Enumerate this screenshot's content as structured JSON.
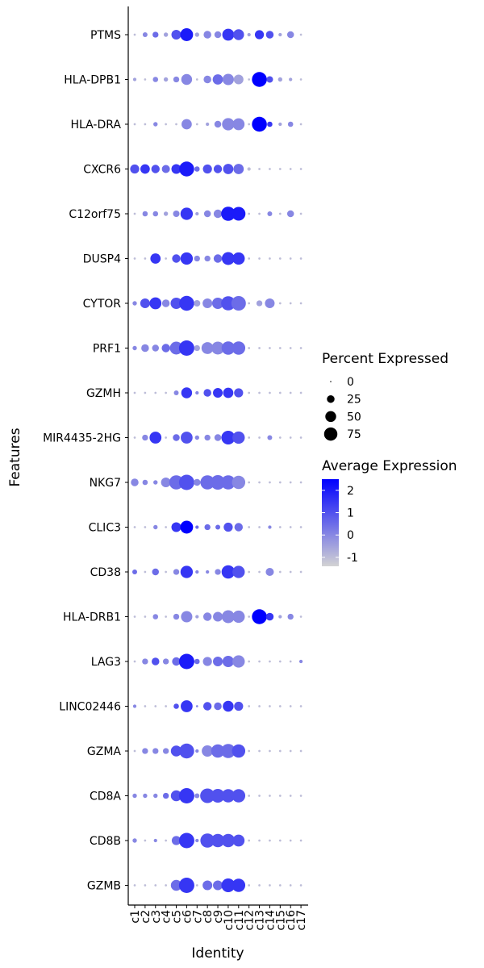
{
  "chart_data": {
    "type": "dotplot",
    "xlabel": "Identity",
    "ylabel": "Features",
    "categories": [
      "c1",
      "c2",
      "c3",
      "c4",
      "c5",
      "c6",
      "c7",
      "c8",
      "c9",
      "c10",
      "c11",
      "c12",
      "c13",
      "c14",
      "c15",
      "c16",
      "c17"
    ],
    "features": [
      "PTMS",
      "HLA-DPB1",
      "HLA-DRA",
      "CXCR6",
      "C12orf75",
      "DUSP4",
      "CYTOR",
      "PRF1",
      "GZMH",
      "MIR4435-2HG",
      "NKG7",
      "CLIC3",
      "CD38",
      "HLA-DRB1",
      "LAG3",
      "LINC02446",
      "GZMA",
      "CD8A",
      "CD8B",
      "GZMB"
    ],
    "percent_expressed": [
      [
        2,
        10,
        15,
        8,
        40,
        70,
        8,
        25,
        20,
        60,
        50,
        5,
        35,
        25,
        5,
        20,
        2
      ],
      [
        5,
        2,
        12,
        8,
        15,
        50,
        2,
        25,
        45,
        55,
        40,
        2,
        95,
        18,
        8,
        5,
        2
      ],
      [
        2,
        2,
        8,
        2,
        2,
        45,
        2,
        5,
        20,
        65,
        60,
        2,
        95,
        12,
        5,
        12,
        2
      ],
      [
        35,
        38,
        30,
        28,
        40,
        95,
        12,
        35,
        30,
        45,
        45,
        5,
        2,
        2,
        2,
        2,
        2
      ],
      [
        2,
        12,
        12,
        8,
        18,
        65,
        5,
        20,
        30,
        85,
        80,
        2,
        2,
        10,
        2,
        20,
        2
      ],
      [
        2,
        2,
        45,
        2,
        30,
        65,
        15,
        15,
        30,
        70,
        65,
        2,
        2,
        2,
        2,
        2,
        2
      ],
      [
        8,
        40,
        60,
        25,
        55,
        95,
        18,
        40,
        55,
        85,
        90,
        2,
        15,
        40,
        2,
        2,
        2
      ],
      [
        8,
        25,
        20,
        30,
        70,
        100,
        15,
        60,
        70,
        75,
        75,
        2,
        2,
        2,
        2,
        2,
        2
      ],
      [
        2,
        2,
        2,
        2,
        10,
        50,
        5,
        25,
        40,
        45,
        35,
        2,
        2,
        2,
        2,
        2,
        2
      ],
      [
        2,
        15,
        60,
        2,
        20,
        60,
        8,
        15,
        20,
        80,
        65,
        2,
        2,
        10,
        2,
        2,
        2
      ],
      [
        25,
        12,
        8,
        40,
        85,
        100,
        20,
        85,
        90,
        85,
        75,
        2,
        2,
        2,
        2,
        2,
        2
      ],
      [
        2,
        2,
        8,
        2,
        40,
        70,
        5,
        15,
        10,
        35,
        30,
        2,
        2,
        5,
        2,
        2,
        2
      ],
      [
        10,
        2,
        20,
        2,
        15,
        65,
        5,
        5,
        15,
        75,
        65,
        2,
        2,
        28,
        2,
        2,
        2
      ],
      [
        2,
        2,
        12,
        2,
        15,
        55,
        5,
        30,
        40,
        70,
        65,
        2,
        95,
        25,
        5,
        15,
        2
      ],
      [
        2,
        15,
        25,
        15,
        30,
        100,
        12,
        35,
        40,
        55,
        65,
        2,
        2,
        2,
        2,
        2,
        5
      ],
      [
        5,
        2,
        2,
        2,
        12,
        60,
        2,
        30,
        25,
        50,
        35,
        2,
        2,
        2,
        2,
        2,
        2
      ],
      [
        2,
        15,
        15,
        15,
        50,
        95,
        5,
        55,
        75,
        85,
        75,
        2,
        2,
        2,
        2,
        2,
        2
      ],
      [
        8,
        8,
        8,
        15,
        50,
        100,
        10,
        90,
        80,
        75,
        75,
        2,
        2,
        2,
        2,
        2,
        2
      ],
      [
        8,
        2,
        5,
        2,
        35,
        100,
        5,
        85,
        75,
        75,
        60,
        2,
        2,
        2,
        2,
        2,
        2
      ],
      [
        2,
        2,
        2,
        2,
        50,
        100,
        2,
        40,
        40,
        80,
        75,
        2,
        2,
        2,
        2,
        2,
        2
      ]
    ],
    "average_expression": [
      [
        -1,
        0,
        0.5,
        -0.5,
        1,
        2,
        -0.5,
        0,
        0,
        1.5,
        1,
        -0.5,
        1.5,
        1,
        -0.5,
        0,
        -1
      ],
      [
        -0.5,
        -1,
        0,
        -0.5,
        0,
        0,
        -1,
        0,
        0.5,
        0,
        -0.5,
        -1,
        2.5,
        1,
        -0.5,
        -0.5,
        -1
      ],
      [
        -1,
        -1,
        0,
        -1,
        -1,
        0,
        -1,
        -0.5,
        0,
        0,
        0,
        -1,
        2.5,
        1.5,
        -0.5,
        0,
        -1
      ],
      [
        1,
        1.5,
        1,
        0.5,
        1.5,
        2,
        0.5,
        1,
        1,
        1,
        0.5,
        -1,
        -1,
        -1,
        -1,
        -1,
        -1
      ],
      [
        -1,
        0,
        0,
        -0.5,
        0,
        1.5,
        -0.5,
        0,
        0,
        2,
        2,
        -1,
        -1,
        0,
        -1,
        0,
        -1
      ],
      [
        -1,
        -1,
        1.5,
        -1,
        1,
        1.5,
        0,
        0,
        0.5,
        1.5,
        1.5,
        -1,
        -1,
        -1,
        -1,
        -1,
        -1
      ],
      [
        0,
        1,
        1.5,
        0,
        1,
        1.5,
        -0.5,
        0,
        0.5,
        1,
        0.5,
        -1,
        -0.5,
        0,
        -1,
        -1,
        -1
      ],
      [
        0,
        0,
        0,
        0.5,
        0.5,
        1.5,
        -0.5,
        0,
        0,
        0.5,
        0.5,
        -1,
        -1,
        -1,
        -1,
        -1,
        -1
      ],
      [
        -1,
        -1,
        -1,
        -1,
        0,
        1.5,
        0,
        1,
        1.5,
        1.5,
        1,
        -1,
        -1,
        -1,
        -1,
        -1,
        -1
      ],
      [
        -1,
        0,
        1.5,
        -1,
        0.5,
        1,
        0,
        0,
        0,
        1.5,
        1,
        -1,
        -1,
        0,
        -1,
        -1,
        -1
      ],
      [
        0,
        0,
        0,
        0,
        0.5,
        1,
        0,
        0.5,
        0.5,
        0.5,
        0,
        -1,
        -1,
        -1,
        -1,
        -1,
        -1
      ],
      [
        -1,
        -1,
        0,
        -1,
        1.5,
        2.5,
        0.5,
        0.5,
        0.5,
        1,
        0.5,
        -1,
        -1,
        0,
        -1,
        -1,
        -1
      ],
      [
        0.5,
        -1,
        0.5,
        -1,
        0,
        1.5,
        0,
        0,
        0,
        1.5,
        1,
        -1,
        -1,
        0,
        -1,
        -1,
        -1
      ],
      [
        -1,
        -1,
        0,
        -1,
        0,
        0,
        -0.5,
        0,
        0,
        0,
        0,
        -1,
        2.5,
        1.5,
        -0.5,
        0,
        -1
      ],
      [
        -1,
        0,
        1,
        0,
        0.5,
        2,
        0.5,
        0,
        0.5,
        0.5,
        0,
        -1,
        -1,
        -1,
        -1,
        -1,
        0
      ],
      [
        0,
        -1,
        -1,
        -1,
        1,
        1.5,
        0,
        1,
        0.5,
        1.5,
        1,
        -1,
        -1,
        -1,
        -1,
        -1,
        -1
      ],
      [
        -1,
        0,
        0,
        0,
        1,
        1,
        0,
        0,
        0.5,
        0.5,
        1,
        -1,
        -1,
        -1,
        -1,
        -1,
        -1
      ],
      [
        0,
        0,
        0,
        0.5,
        1,
        1.5,
        0,
        1,
        1,
        1,
        1,
        -1,
        -1,
        -1,
        -1,
        -1,
        -1
      ],
      [
        0,
        -1,
        0,
        -1,
        0.5,
        1.5,
        0,
        1,
        1,
        1,
        1,
        -1,
        -1,
        -1,
        -1,
        -1,
        -1
      ],
      [
        -1,
        -1,
        -1,
        -1,
        0.5,
        1.5,
        -1,
        0.5,
        0.5,
        1.5,
        1.5,
        -1,
        -1,
        -1,
        -1,
        -1,
        -1
      ]
    ],
    "size_legend": {
      "title": "Percent Expressed",
      "values": [
        0,
        25,
        50,
        75
      ],
      "labels": [
        "0",
        "25",
        "50",
        "75"
      ]
    },
    "color_legend": {
      "title": "Average Expression",
      "range": [
        -1.4,
        2.5
      ],
      "low_color": "#d3d3d3",
      "high_color": "#0000ff",
      "ticks": [
        2,
        1,
        0,
        -1
      ],
      "labels": [
        "2",
        "1",
        "0",
        "-1"
      ]
    },
    "grid": false,
    "legend_position": "right"
  }
}
